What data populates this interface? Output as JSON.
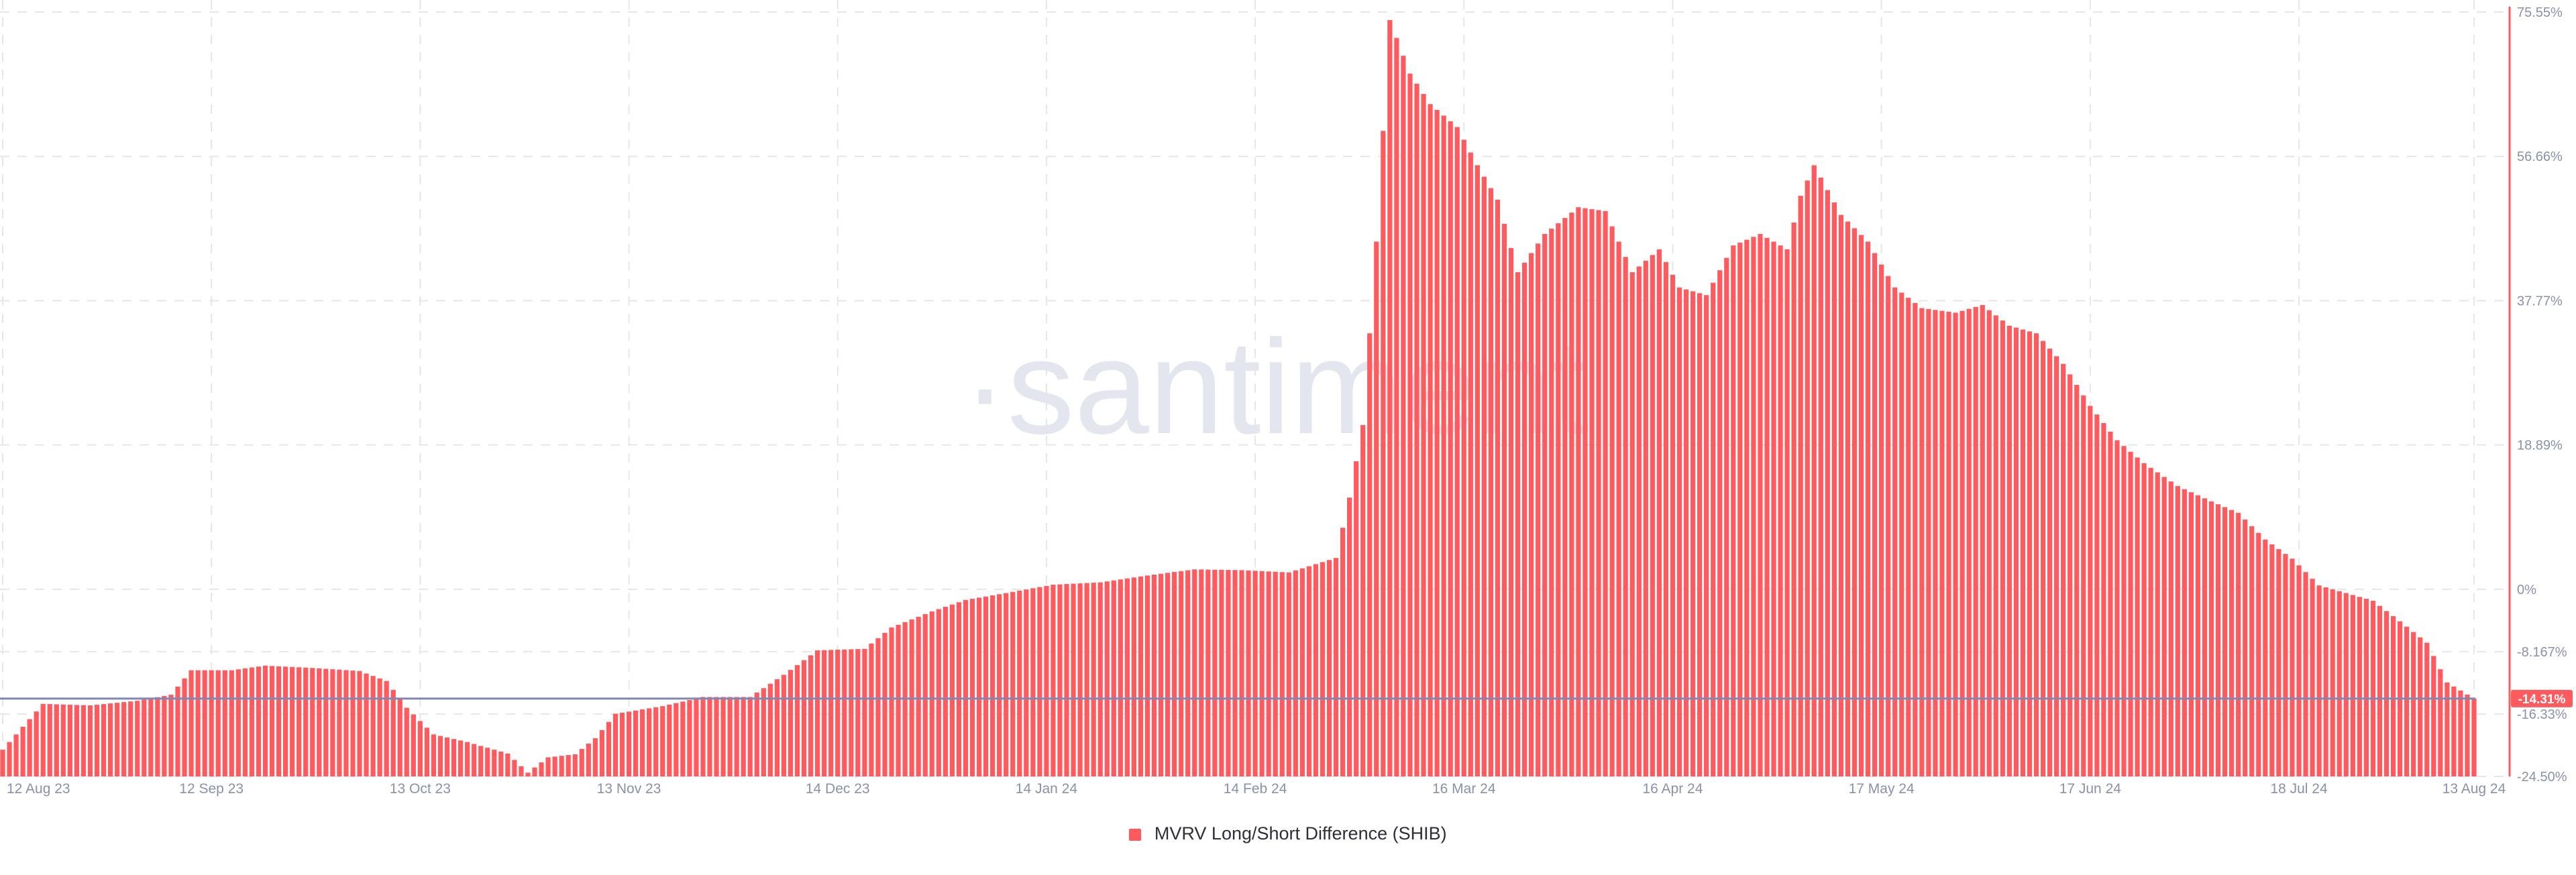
{
  "watermark": "·santiment",
  "colors": {
    "bar": "#ff5b5f",
    "baseline": "#7f87b6",
    "axis_right": "#ff5b5f",
    "tick_text": "#8a91ab",
    "grid": "#e6e6e6",
    "watermark": "#e3e6ef",
    "marker_bg": "#ff5b5f",
    "marker_text": "#ffffff"
  },
  "legend": {
    "label": "MVRV Long/Short Difference (SHIB)",
    "icon": "square-swatch"
  },
  "chart_data": {
    "type": "bar",
    "title": "",
    "xlabel": "",
    "ylabel": "",
    "y_unit": "%",
    "ylim": [
      -24.5,
      75.55
    ],
    "grid": true,
    "y_axis_side": "right",
    "legend_position": "bottom-center",
    "y_ticks": [
      {
        "value": 75.55,
        "label": "75.55%"
      },
      {
        "value": 56.66,
        "label": "56.66%"
      },
      {
        "value": 37.77,
        "label": "37.77%"
      },
      {
        "value": 18.89,
        "label": "18.89%"
      },
      {
        "value": 0,
        "label": "0%"
      },
      {
        "value": -8.167,
        "label": "-8.167%"
      },
      {
        "value": -16.33,
        "label": "-16.33%"
      },
      {
        "value": -24.5,
        "label": "-24.50%"
      }
    ],
    "x_ticks": [
      {
        "date": "2023-08-12",
        "label": "12 Aug 23"
      },
      {
        "date": "2023-09-12",
        "label": "12 Sep 23"
      },
      {
        "date": "2023-10-13",
        "label": "13 Oct 23"
      },
      {
        "date": "2023-11-13",
        "label": "13 Nov 23"
      },
      {
        "date": "2023-12-14",
        "label": "14 Dec 23"
      },
      {
        "date": "2024-01-14",
        "label": "14 Jan 24"
      },
      {
        "date": "2024-02-14",
        "label": "14 Feb 24"
      },
      {
        "date": "2024-03-16",
        "label": "16 Mar 24"
      },
      {
        "date": "2024-04-16",
        "label": "16 Apr 24"
      },
      {
        "date": "2024-05-17",
        "label": "17 May 24"
      },
      {
        "date": "2024-06-17",
        "label": "17 Jun 24"
      },
      {
        "date": "2024-07-18",
        "label": "18 Jul 24"
      },
      {
        "date": "2024-08-13",
        "label": "13 Aug 24"
      }
    ],
    "current_value": {
      "value": -14.31,
      "label": "-14.31%"
    },
    "series": [
      {
        "name": "MVRV Long/Short Difference (SHIB)",
        "points": [
          [
            "2023-08-12",
            -21.0
          ],
          [
            "2023-08-18",
            -15.0
          ],
          [
            "2023-08-25",
            -15.2
          ],
          [
            "2023-09-01",
            -14.6
          ],
          [
            "2023-09-06",
            -13.8
          ],
          [
            "2023-09-09",
            -10.6
          ],
          [
            "2023-09-15",
            -10.6
          ],
          [
            "2023-09-20",
            -10.0
          ],
          [
            "2023-09-27",
            -10.3
          ],
          [
            "2023-10-04",
            -10.7
          ],
          [
            "2023-10-08",
            -12.0
          ],
          [
            "2023-10-11",
            -15.5
          ],
          [
            "2023-10-15",
            -19.0
          ],
          [
            "2023-10-20",
            -20.0
          ],
          [
            "2023-10-26",
            -21.5
          ],
          [
            "2023-10-29",
            -24.0
          ],
          [
            "2023-11-01",
            -22.0
          ],
          [
            "2023-11-05",
            -21.6
          ],
          [
            "2023-11-08",
            -19.5
          ],
          [
            "2023-11-11",
            -16.3
          ],
          [
            "2023-11-18",
            -15.3
          ],
          [
            "2023-11-24",
            -14.1
          ],
          [
            "2023-12-01",
            -14.1
          ],
          [
            "2023-12-06",
            -11.2
          ],
          [
            "2023-12-11",
            -8.0
          ],
          [
            "2023-12-18",
            -7.8
          ],
          [
            "2023-12-22",
            -5.0
          ],
          [
            "2023-12-28",
            -2.9
          ],
          [
            "2024-01-02",
            -1.4
          ],
          [
            "2024-01-08",
            -0.5
          ],
          [
            "2024-01-15",
            0.6
          ],
          [
            "2024-01-22",
            0.9
          ],
          [
            "2024-01-29",
            1.8
          ],
          [
            "2024-02-05",
            2.6
          ],
          [
            "2024-02-12",
            2.5
          ],
          [
            "2024-02-19",
            2.2
          ],
          [
            "2024-02-26",
            4.1
          ],
          [
            "2024-02-28",
            12.0
          ],
          [
            "2024-03-01",
            21.5
          ],
          [
            "2024-03-03",
            45.5
          ],
          [
            "2024-03-05",
            74.5
          ],
          [
            "2024-03-08",
            67.5
          ],
          [
            "2024-03-11",
            63.5
          ],
          [
            "2024-03-15",
            60.5
          ],
          [
            "2024-03-18",
            55.5
          ],
          [
            "2024-03-21",
            51.0
          ],
          [
            "2024-03-24",
            41.5
          ],
          [
            "2024-03-28",
            46.5
          ],
          [
            "2024-04-02",
            50.0
          ],
          [
            "2024-04-06",
            49.5
          ],
          [
            "2024-04-10",
            41.5
          ],
          [
            "2024-04-14",
            44.5
          ],
          [
            "2024-04-17",
            39.5
          ],
          [
            "2024-04-21",
            38.5
          ],
          [
            "2024-04-25",
            45.0
          ],
          [
            "2024-04-29",
            46.5
          ],
          [
            "2024-05-03",
            44.5
          ],
          [
            "2024-05-05",
            51.5
          ],
          [
            "2024-05-07",
            55.5
          ],
          [
            "2024-05-11",
            49.0
          ],
          [
            "2024-05-15",
            45.5
          ],
          [
            "2024-05-19",
            39.5
          ],
          [
            "2024-05-23",
            36.8
          ],
          [
            "2024-05-28",
            36.2
          ],
          [
            "2024-06-01",
            37.2
          ],
          [
            "2024-06-05",
            34.5
          ],
          [
            "2024-06-09",
            33.5
          ],
          [
            "2024-06-13",
            29.5
          ],
          [
            "2024-06-17",
            24.0
          ],
          [
            "2024-06-21",
            19.5
          ],
          [
            "2024-06-25",
            16.5
          ],
          [
            "2024-06-30",
            13.5
          ],
          [
            "2024-07-05",
            11.5
          ],
          [
            "2024-07-09",
            10.0
          ],
          [
            "2024-07-13",
            6.5
          ],
          [
            "2024-07-17",
            4.0
          ],
          [
            "2024-07-21",
            0.5
          ],
          [
            "2024-07-25",
            -0.5
          ],
          [
            "2024-07-29",
            -1.5
          ],
          [
            "2024-08-02",
            -4.2
          ],
          [
            "2024-08-06",
            -7.0
          ],
          [
            "2024-08-09",
            -12.2
          ],
          [
            "2024-08-13",
            -14.31
          ]
        ]
      }
    ]
  }
}
